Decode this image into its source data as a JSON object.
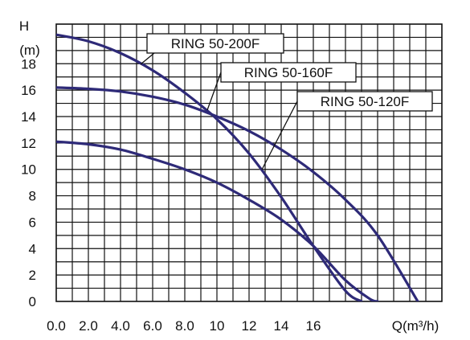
{
  "chart_data": {
    "type": "line",
    "title": "",
    "y_axis": {
      "label_top": "H",
      "label_unit": "(m)",
      "ylim": [
        0,
        21
      ],
      "ticks": [
        0,
        2,
        4,
        6,
        8,
        10,
        12,
        14,
        16,
        18
      ],
      "tick_labels": [
        "0",
        "2",
        "4",
        "6",
        "8",
        "10",
        "12",
        "14",
        "16",
        "18"
      ]
    },
    "x_axis": {
      "label": "Q(m³/h)",
      "xlim": [
        0,
        24
      ],
      "ticks": [
        0,
        2,
        4,
        6,
        8,
        10,
        12,
        14,
        16
      ],
      "tick_labels": [
        "0.0",
        "2.0",
        "4.0",
        "6.0",
        "8.0",
        "10",
        "12",
        "14",
        "16"
      ]
    },
    "grid": true,
    "series": [
      {
        "name": "RING 50-200F",
        "x": [
          0,
          2,
          4,
          6,
          8,
          10,
          12,
          14,
          16,
          18,
          19
        ],
        "y": [
          20.2,
          19.7,
          18.8,
          17.5,
          15.8,
          13.8,
          11.2,
          7.9,
          4.2,
          0.8,
          0
        ]
      },
      {
        "name": "RING 50-160F",
        "x": [
          0,
          2,
          4,
          6,
          8,
          10,
          12,
          14,
          16,
          18,
          20,
          22.5
        ],
        "y": [
          16.2,
          16.1,
          15.9,
          15.5,
          14.9,
          14.0,
          12.9,
          11.5,
          9.8,
          7.7,
          5.0,
          0
        ]
      },
      {
        "name": "RING 50-120F",
        "x": [
          0,
          2,
          4,
          6,
          8,
          10,
          12,
          14,
          16,
          18,
          19.5,
          20
        ],
        "y": [
          12.1,
          11.9,
          11.5,
          10.8,
          10.0,
          9.0,
          7.7,
          6.2,
          4.2,
          1.6,
          0.2,
          0
        ]
      }
    ],
    "colors": {
      "series_line": "#2e2a78",
      "grid": "#111111",
      "background": "#ffffff"
    },
    "annotations": [
      {
        "text": "RING 50-200F",
        "series": "RING 50-200F"
      },
      {
        "text": "RING 50-160F",
        "series": "RING 50-160F"
      },
      {
        "text": "RING 50-120F",
        "series": "RING 50-120F"
      }
    ]
  }
}
